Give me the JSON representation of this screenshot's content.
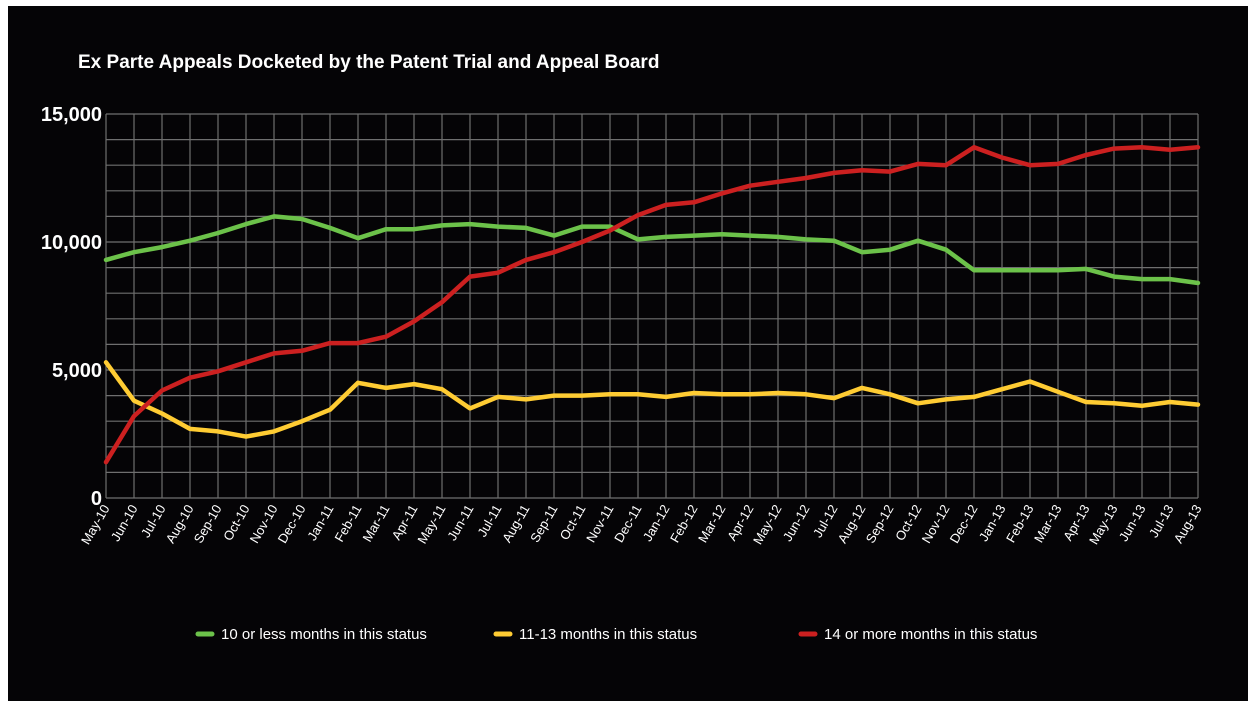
{
  "chart_data": {
    "type": "line",
    "title": "Ex Parte Appeals Docketed by the Patent Trial and Appeal Board",
    "xlabel": "",
    "ylabel": "",
    "ylim": [
      0,
      15000
    ],
    "yticks": [
      {
        "value": 0,
        "label": "0"
      },
      {
        "value": 5000,
        "label": "5,000"
      },
      {
        "value": 10000,
        "label": "10,000"
      },
      {
        "value": 15000,
        "label": "15,000"
      }
    ],
    "grid": true,
    "legend_position": "bottom",
    "categories": [
      "May-10",
      "Jun-10",
      "Jul-10",
      "Aug-10",
      "Sep-10",
      "Oct-10",
      "Nov-10",
      "Dec-10",
      "Jan-11",
      "Feb-11",
      "Mar-11",
      "Apr-11",
      "May-11",
      "Jun-11",
      "Jul-11",
      "Aug-11",
      "Sep-11",
      "Oct-11",
      "Nov-11",
      "Dec-11",
      "Jan-12",
      "Feb-12",
      "Mar-12",
      "Apr-12",
      "May-12",
      "Jun-12",
      "Jul-12",
      "Aug-12",
      "Sep-12",
      "Oct-12",
      "Nov-12",
      "Dec-12",
      "Jan-13",
      "Feb-13",
      "Mar-13",
      "Apr-13",
      "May-13",
      "Jun-13",
      "Jul-13",
      "Aug-13"
    ],
    "series": [
      {
        "name": "10 or less months in this status",
        "color": "#6cc24a",
        "values": [
          9300,
          9600,
          9800,
          10050,
          10350,
          10700,
          11000,
          10900,
          10550,
          10150,
          10500,
          10500,
          10650,
          10700,
          10600,
          10550,
          10250,
          10600,
          10600,
          10100,
          10200,
          10250,
          10300,
          10250,
          10200,
          10100,
          10050,
          9600,
          9700,
          10050,
          9700,
          8900,
          8900,
          8900,
          8900,
          8950,
          8650,
          8550,
          8550,
          8400
        ]
      },
      {
        "name": "11-13 months in this status",
        "color": "#ffcc33",
        "values": [
          5300,
          3800,
          3300,
          2700,
          2600,
          2400,
          2600,
          3000,
          3450,
          4500,
          4300,
          4450,
          4250,
          3500,
          3950,
          3850,
          4000,
          4000,
          4050,
          4050,
          3950,
          4100,
          4050,
          4050,
          4100,
          4050,
          3900,
          4300,
          4050,
          3700,
          3850,
          3950,
          4250,
          4550,
          4150,
          3750,
          3700,
          3600,
          3750,
          3650
        ]
      },
      {
        "name": "14 or more months in this status",
        "color": "#cc2020",
        "values": [
          1400,
          3200,
          4200,
          4700,
          4950,
          5300,
          5650,
          5750,
          6050,
          6050,
          6300,
          6900,
          7650,
          8650,
          8800,
          9300,
          9600,
          10000,
          10450,
          11050,
          11450,
          11550,
          11900,
          12200,
          12350,
          12500,
          12700,
          12800,
          12750,
          13050,
          13000,
          13700,
          13300,
          13000,
          13050,
          13400,
          13650,
          13700,
          13600,
          13700
        ]
      }
    ]
  }
}
